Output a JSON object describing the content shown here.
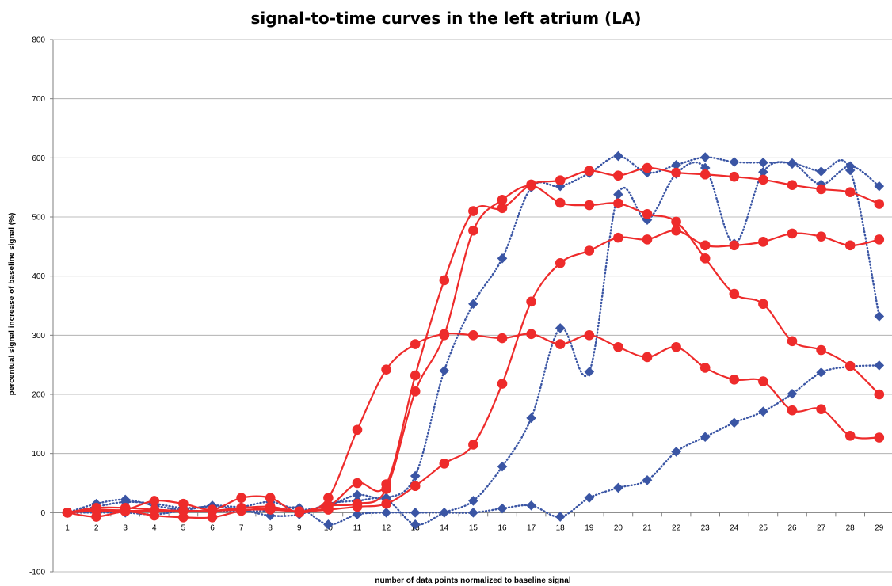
{
  "chart_data": {
    "type": "line",
    "title": "signal-to-time curves in the left atrium (LA)",
    "xlabel": "number of data points normalized to baseline signal",
    "ylabel": "percentual signal increase of baseline signal (%)",
    "ylim": [
      -100,
      800
    ],
    "yticks": [
      -100,
      0,
      100,
      200,
      300,
      400,
      500,
      600,
      700,
      800
    ],
    "grid": true,
    "legend": "none",
    "x": [
      1,
      2,
      3,
      4,
      5,
      6,
      7,
      8,
      9,
      10,
      11,
      12,
      13,
      14,
      15,
      16,
      17,
      18,
      19,
      20,
      21,
      22,
      23,
      24,
      25,
      26,
      27,
      28,
      29
    ],
    "series": [
      {
        "style": "red-solid-circle",
        "color": "#ee2b2b",
        "values": [
          0,
          5,
          5,
          20,
          15,
          5,
          25,
          25,
          0,
          25,
          140,
          242,
          285,
          302,
          300,
          295,
          302,
          285,
          300,
          280,
          263,
          280,
          245,
          225,
          222,
          173,
          175,
          130,
          127
        ]
      },
      {
        "style": "red-solid-circle",
        "color": "#ee2b2b",
        "values": [
          0,
          -7,
          2,
          -5,
          -8,
          -8,
          3,
          7,
          2,
          10,
          50,
          48,
          232,
          393,
          510,
          515,
          555,
          562,
          578,
          570,
          583,
          575,
          572,
          568,
          563,
          554,
          547,
          542,
          522
        ]
      },
      {
        "style": "red-solid-circle",
        "color": "#ee2b2b",
        "values": [
          0,
          8,
          8,
          5,
          3,
          3,
          8,
          10,
          2,
          12,
          15,
          40,
          205,
          300,
          477,
          529,
          553,
          524,
          520,
          523,
          505,
          492,
          430,
          370,
          353,
          290,
          275,
          248,
          200
        ]
      },
      {
        "style": "red-solid-circle",
        "color": "#ee2b2b",
        "values": [
          0,
          3,
          3,
          3,
          3,
          3,
          5,
          5,
          2,
          5,
          10,
          15,
          45,
          83,
          115,
          218,
          357,
          422,
          443,
          465,
          462,
          477,
          452,
          452,
          458,
          472,
          467,
          452,
          462
        ]
      },
      {
        "style": "blue-dotted-diamond",
        "color": "#3a55a4",
        "values": [
          0,
          15,
          22,
          12,
          5,
          12,
          10,
          18,
          5,
          12,
          30,
          25,
          62,
          240,
          353,
          430,
          550,
          552,
          574,
          603,
          575,
          588,
          601,
          593,
          592,
          591,
          577,
          579,
          332
        ]
      },
      {
        "style": "blue-dotted-diamond",
        "color": "#3a55a4",
        "values": [
          0,
          10,
          18,
          15,
          8,
          10,
          5,
          -5,
          -3,
          15,
          20,
          22,
          -20,
          0,
          20,
          78,
          160,
          312,
          238,
          538,
          495,
          573,
          583,
          455,
          576,
          590,
          555,
          586,
          552
        ]
      },
      {
        "style": "blue-dotted-diamond",
        "color": "#3a55a4",
        "values": [
          0,
          0,
          0,
          -3,
          3,
          2,
          2,
          3,
          8,
          -20,
          -3,
          0,
          0,
          0,
          0,
          7,
          12,
          -7,
          25,
          42,
          55,
          103,
          128,
          152,
          171,
          201,
          237,
          247,
          249
        ]
      }
    ]
  }
}
